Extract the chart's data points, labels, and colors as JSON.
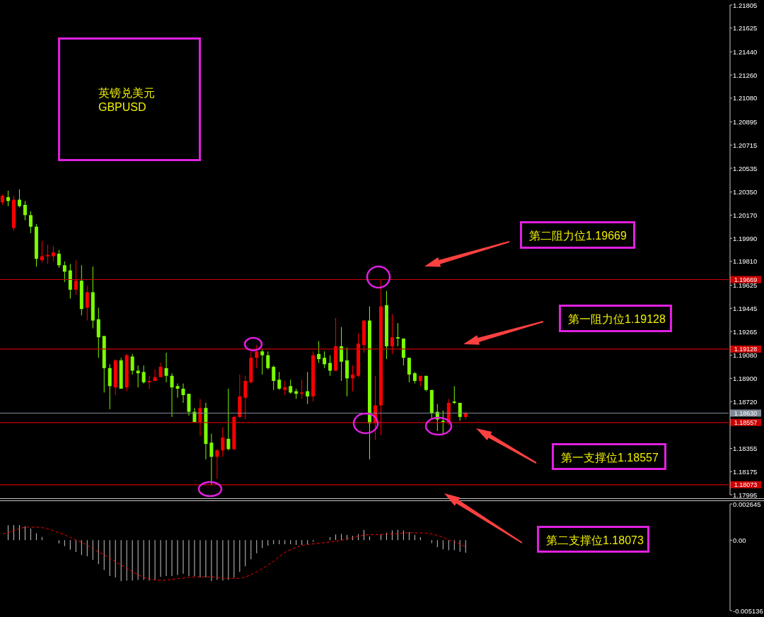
{
  "chart_data": [
    {
      "type": "candlestick",
      "categories": [
        null,
        null,
        null,
        null,
        null,
        null,
        null,
        null,
        null,
        null,
        null,
        null,
        null,
        null,
        null,
        null,
        null,
        null,
        null,
        null,
        null,
        null,
        null,
        null,
        null,
        null,
        null,
        null,
        null,
        null,
        null,
        null,
        null,
        null,
        null,
        null,
        null,
        null,
        null,
        null,
        null,
        null,
        null,
        null,
        null,
        null,
        null,
        null,
        null,
        null,
        null,
        null,
        null,
        null,
        null,
        null,
        null,
        null,
        null,
        null,
        null,
        null,
        null,
        null,
        null,
        null,
        null,
        null,
        null,
        null,
        null,
        null,
        null,
        null,
        null,
        null,
        null,
        null,
        null,
        null,
        null,
        null,
        null,
        null,
        null,
        null,
        null,
        null,
        null,
        null,
        null,
        null,
        null,
        null,
        null,
        null,
        null,
        null,
        null,
        null,
        null,
        null,
        null,
        null,
        null,
        null,
        null,
        null,
        null,
        null,
        null,
        null,
        null,
        null,
        null,
        null,
        null,
        null,
        null,
        null,
        null,
        null,
        null,
        null,
        null,
        null,
        null,
        null,
        null
      ],
      "ohlc": [
        [
          1.2027,
          1.2033,
          1.2025,
          1.2032
        ],
        [
          1.2031,
          1.2036,
          1.2024,
          1.2028
        ],
        [
          1.2007,
          1.2032,
          1.2005,
          1.2029
        ],
        [
          1.2029,
          1.2037,
          1.2023,
          1.2024
        ],
        [
          1.2025,
          1.2028,
          1.2013,
          1.2017
        ],
        [
          1.2017,
          1.202,
          1.2003,
          1.2008
        ],
        [
          1.2008,
          1.201,
          1.1977,
          1.1983
        ],
        [
          1.1982,
          1.1997,
          1.198,
          1.1985
        ],
        [
          1.1985,
          1.1994,
          1.1979,
          1.1986
        ],
        [
          1.1985,
          1.1993,
          1.1981,
          1.1988
        ],
        [
          1.1987,
          1.199,
          1.1976,
          1.1978
        ],
        [
          1.1978,
          1.1981,
          1.1965,
          1.1973
        ],
        [
          1.1974,
          1.1979,
          1.1952,
          1.1959
        ],
        [
          1.1959,
          1.1982,
          1.1955,
          1.1966
        ],
        [
          1.1966,
          1.1978,
          1.1939,
          1.1944
        ],
        [
          1.1945,
          1.1962,
          1.1935,
          1.1957
        ],
        [
          1.1957,
          1.1977,
          1.1929,
          1.1935
        ],
        [
          1.1936,
          1.1945,
          1.1906,
          1.1922
        ],
        [
          1.1923,
          1.1923,
          1.1879,
          1.1898
        ],
        [
          1.1898,
          1.1901,
          1.1866,
          1.1884
        ],
        [
          1.1883,
          1.1905,
          1.1877,
          1.1904
        ],
        [
          1.1904,
          1.1906,
          1.1882,
          1.1882
        ],
        [
          1.1883,
          1.1909,
          1.188,
          1.1908
        ],
        [
          1.1907,
          1.1909,
          1.1893,
          1.1896
        ],
        [
          1.1896,
          1.19,
          1.1883,
          1.1894
        ],
        [
          1.1895,
          1.19,
          1.1886,
          1.1887
        ],
        [
          1.1887,
          1.1892,
          1.1882,
          1.1888
        ],
        [
          1.1888,
          1.1897,
          1.1888,
          1.1891
        ],
        [
          1.1891,
          1.1902,
          1.1891,
          1.1899
        ],
        [
          1.1898,
          1.191,
          1.1887,
          1.1892
        ],
        [
          1.1892,
          1.1894,
          1.186,
          1.1883
        ],
        [
          1.1884,
          1.1886,
          1.1875,
          1.1882
        ],
        [
          1.1882,
          1.1886,
          1.1871,
          1.1877
        ],
        [
          1.1878,
          1.1878,
          1.1861,
          1.1864
        ],
        [
          1.1864,
          1.1867,
          1.1856,
          1.1856
        ],
        [
          1.1856,
          1.1874,
          1.1845,
          1.1867
        ],
        [
          1.1867,
          1.1871,
          1.1827,
          1.1839
        ],
        [
          1.184,
          1.1847,
          1.1807,
          1.1829
        ],
        [
          1.1829,
          1.1835,
          1.1812,
          1.1834
        ],
        [
          1.1834,
          1.1852,
          1.1829,
          1.1844
        ],
        [
          1.1843,
          1.1882,
          1.1834,
          1.1835
        ],
        [
          1.1835,
          1.1861,
          1.1834,
          1.186
        ],
        [
          1.186,
          1.1893,
          1.1859,
          1.1876
        ],
        [
          1.1875,
          1.1892,
          1.1858,
          1.1888
        ],
        [
          1.1887,
          1.1911,
          1.1886,
          1.1906
        ],
        [
          1.1906,
          1.1916,
          1.1898,
          1.1911
        ],
        [
          1.1911,
          1.1913,
          1.1893,
          1.1908
        ],
        [
          1.1908,
          1.1911,
          1.1897,
          1.1898
        ],
        [
          1.1899,
          1.19,
          1.1881,
          1.1888
        ],
        [
          1.1889,
          1.1895,
          1.1881,
          1.1882
        ],
        [
          1.1881,
          1.1888,
          1.1877,
          1.1883
        ],
        [
          1.1884,
          1.1889,
          1.1878,
          1.1879
        ],
        [
          1.188,
          1.1882,
          1.1874,
          1.1878
        ],
        [
          1.1878,
          1.1889,
          1.1874,
          1.1879
        ],
        [
          1.188,
          1.1895,
          1.187,
          1.1876
        ],
        [
          1.1876,
          1.1911,
          1.1872,
          1.1908
        ],
        [
          1.1909,
          1.1919,
          1.1902,
          1.1905
        ],
        [
          1.1906,
          1.1911,
          1.1898,
          1.1901
        ],
        [
          1.1902,
          1.1908,
          1.1892,
          1.1896
        ],
        [
          1.1896,
          1.1937,
          1.1896,
          1.1915
        ],
        [
          1.1915,
          1.193,
          1.1888,
          1.1903
        ],
        [
          1.1904,
          1.1914,
          1.1876,
          1.189
        ],
        [
          1.189,
          1.19,
          1.188,
          1.1893
        ],
        [
          1.1892,
          1.1925,
          1.1891,
          1.1917
        ],
        [
          1.1916,
          1.1935,
          1.191,
          1.1935
        ],
        [
          1.1935,
          1.1946,
          1.1827,
          1.1855
        ],
        [
          1.1855,
          1.1892,
          1.1842,
          1.1869
        ],
        [
          1.1869,
          1.1967,
          1.1846,
          1.1946
        ],
        [
          1.1947,
          1.1958,
          1.1905,
          1.1915
        ],
        [
          1.1915,
          1.194,
          1.1909,
          1.1922
        ],
        [
          1.1922,
          1.1933,
          1.1915,
          1.1921
        ],
        [
          1.1921,
          1.1921,
          1.19,
          1.1906
        ],
        [
          1.1906,
          1.1906,
          1.1887,
          1.1893
        ],
        [
          1.1894,
          1.1895,
          1.1886,
          1.1888
        ],
        [
          1.1888,
          1.1892,
          1.1884,
          1.1892
        ],
        [
          1.1892,
          1.1892,
          1.188,
          1.1881
        ],
        [
          1.1881,
          1.1881,
          1.1858,
          1.1863
        ],
        [
          1.1864,
          1.187,
          1.1849,
          1.1858
        ],
        [
          1.1857,
          1.1865,
          1.1846,
          1.1856
        ],
        [
          1.1856,
          1.1874,
          1.1854,
          1.1871
        ],
        [
          1.1872,
          1.1884,
          1.187,
          1.1871
        ],
        [
          1.1871,
          1.1871,
          1.1857,
          1.186
        ],
        [
          1.186,
          1.1864,
          1.1858,
          1.1863
        ],
        null,
        null,
        null,
        null,
        null,
        null,
        null,
        null,
        null,
        null,
        null,
        null,
        null,
        null,
        null,
        null,
        null,
        null,
        null,
        null,
        null,
        null,
        null,
        null,
        null,
        null,
        null,
        null,
        null,
        null,
        null,
        null,
        null,
        null,
        null,
        null,
        null,
        null,
        null,
        null,
        null,
        null,
        null,
        null,
        null,
        null
      ],
      "colors": [
        "#ff0000",
        "#7cfc00",
        "#ff0000",
        "#7cfc00",
        "#7cfc00",
        "#7cfc00",
        "#7cfc00",
        "#ff0000",
        "#ff0000",
        "#ff0000",
        "#7cfc00",
        "#7cfc00",
        "#7cfc00",
        "#ff0000",
        "#7cfc00",
        "#ff0000",
        "#7cfc00",
        "#7cfc00",
        "#7cfc00",
        "#7cfc00",
        "#ff0000",
        "#7cfc00",
        "#ff0000",
        "#7cfc00",
        "#7cfc00",
        "#7cfc00",
        "#ff0000",
        "#ff0000",
        "#ff0000",
        "#7cfc00",
        "#7cfc00",
        "#7cfc00",
        "#7cfc00",
        "#7cfc00",
        "#7cfc00",
        "#ff0000",
        "#7cfc00",
        "#7cfc00",
        "#ff0000",
        "#ff0000",
        "#7cfc00",
        "#ff0000",
        "#ff0000",
        "#ff0000",
        "#ff0000",
        "#ff0000",
        "#7cfc00",
        "#7cfc00",
        "#7cfc00",
        "#7cfc00",
        "#ff0000",
        "#7cfc00",
        "#7cfc00",
        "#ff0000",
        "#7cfc00",
        "#ff0000",
        "#7cfc00",
        "#7cfc00",
        "#7cfc00",
        "#ff0000",
        "#7cfc00",
        "#7cfc00",
        "#ff0000",
        "#ff0000",
        "#ff0000",
        "#7cfc00",
        "#ff0000",
        "#ff0000",
        "#7cfc00",
        "#ff0000",
        "#7cfc00",
        "#7cfc00",
        "#7cfc00",
        "#7cfc00",
        "#ff0000",
        "#7cfc00",
        "#7cfc00",
        "#7cfc00",
        "#7cfc00",
        "#ff0000",
        "#7cfc00",
        "#7cfc00",
        "#ff0000",
        null,
        null,
        null,
        null,
        null,
        null,
        null,
        null,
        null,
        null,
        null,
        null,
        null,
        null,
        null,
        null,
        null,
        null,
        null,
        null,
        null,
        null,
        null,
        null,
        null,
        null,
        null,
        null,
        null,
        null,
        null,
        null,
        null,
        null,
        null,
        null,
        null,
        null,
        null,
        null,
        null,
        null,
        null,
        null,
        null,
        null
      ],
      "ylim": [
        1.17995,
        1.21805
      ],
      "yticks": [
        1.21805,
        1.21625,
        {
          "value": 1.2144,
          "label": "1.21440"
        },
        {
          "value": 1.2126,
          "label": "1.21260"
        },
        {
          "value": 1.2108,
          "label": "1.21080"
        },
        1.20895,
        1.20715,
        1.20535,
        {
          "value": 1.2035,
          "label": "1.20350"
        },
        {
          "value": 1.2017,
          "label": "1.20170"
        },
        {
          "value": 1.1999,
          "label": "1.19990"
        },
        {
          "value": 1.1981,
          "label": "1.19810"
        },
        1.19625,
        1.19445,
        1.19265,
        {
          "value": 1.1908,
          "label": "1.19080"
        },
        {
          "value": 1.189,
          "label": "1.18900"
        },
        {
          "value": 1.1872,
          "label": "1.18720"
        },
        1.18355,
        1.18175,
        1.17995
      ],
      "ref_lines": [
        {
          "axis": "y",
          "value": 1.19669,
          "label": "1.19669",
          "color": "#cc0000"
        },
        {
          "axis": "y",
          "value": 1.19128,
          "label": "1.19128",
          "color": "#cc0000"
        },
        {
          "axis": "y",
          "value": 1.1863,
          "label": "1.18630",
          "color": "#7f8a96"
        },
        {
          "axis": "y",
          "value": 1.18557,
          "label": "1.18557",
          "color": "#cc0000"
        },
        {
          "axis": "y",
          "value": 1.18073,
          "label": "1.18073",
          "color": "#cc0000"
        }
      ],
      "annotations": [
        "英镑兑美元\nGBPUSD",
        "第二阻力位1.19669",
        "第一阻力位1.19128",
        "第一支撑位1.18557",
        "第二支撑位1.18073"
      ],
      "tick_labels": "y"
    },
    {
      "type": "bar",
      "categories": [
        null,
        null,
        null,
        null,
        null,
        null,
        null,
        null,
        null,
        null,
        null,
        null,
        null,
        null,
        null,
        null,
        null,
        null,
        null,
        null,
        null,
        null,
        null,
        null,
        null,
        null,
        null,
        null,
        null,
        null,
        null,
        null,
        null,
        null,
        null,
        null,
        null,
        null,
        null,
        null,
        null,
        null,
        null,
        null,
        null,
        null,
        null,
        null,
        null,
        null,
        null,
        null,
        null,
        null,
        null,
        null,
        null,
        null,
        null,
        null,
        null,
        null,
        null,
        null,
        null,
        null,
        null,
        null,
        null,
        null,
        null,
        null,
        null,
        null,
        null,
        null,
        null,
        null,
        null,
        null,
        null,
        null,
        null,
        null,
        null,
        null,
        null,
        null,
        null,
        null,
        null,
        null,
        null,
        null,
        null,
        null,
        null,
        null,
        null,
        null,
        null,
        null,
        null,
        null,
        null,
        null,
        null,
        null,
        null,
        null,
        null,
        null,
        null,
        null,
        null,
        null,
        null,
        null,
        null,
        null,
        null,
        null,
        null,
        null,
        null,
        null,
        null,
        null,
        null
      ],
      "series": [
        {
          "type": "bar",
          "color": "#c8c8c8",
          "values": [
            null,
            0.00108,
            0.0011,
            0.0011,
            0.00102,
            0.00086,
            0.00051,
            0.00024,
            null,
            0,
            -0.00024,
            -0.00044,
            -0.00069,
            -0.00086,
            -0.00108,
            -0.00117,
            -0.00144,
            -0.00175,
            -0.00217,
            -0.00261,
            -0.00272,
            -0.00298,
            -0.00294,
            -0.00294,
            -0.0029,
            -0.0029,
            -0.00294,
            -0.0029,
            -0.00267,
            -0.00261,
            -0.00261,
            -0.00254,
            -0.00245,
            -0.00261,
            -0.00263,
            -0.00272,
            -0.00272,
            -0.00298,
            -0.0029,
            -0.00294,
            -0.0029,
            -0.00272,
            -0.00232,
            -0.0019,
            -0.00139,
            -0.00095,
            -0.00057,
            -0.0004,
            -0.00029,
            -0.00029,
            -0.00029,
            -0.00029,
            -0.00035,
            -0.00035,
            -0.00029,
            -0.00011,
            null,
            null,
            0.00022,
            0.00042,
            0.00046,
            0.00038,
            0.00031,
            0.00044,
            0.00075,
            0.00027,
            0,
            0.00044,
            0.00055,
            0.00071,
            0.00075,
            0.00071,
            0.0006,
            0.00038,
            0.00022,
            null,
            -0.00022,
            -0.00051,
            -0.00066,
            -0.00073,
            -0.00073,
            -0.00084,
            -0.00091,
            null,
            null,
            null,
            null,
            null,
            null,
            null,
            null,
            null,
            null,
            null,
            null,
            null,
            null,
            null,
            null,
            null,
            null,
            null,
            null,
            null,
            null,
            null,
            null,
            null,
            null,
            null,
            null,
            null,
            null,
            null,
            null,
            null,
            null,
            null,
            null,
            null,
            null,
            null,
            null,
            null,
            null,
            null,
            null,
            null,
            null
          ]
        },
        {
          "type": "line",
          "color": "#ff0000",
          "line_style": "dashed",
          "values": [
            0.00046,
            0.00055,
            0.00071,
            0.00086,
            0.00095,
            0.00095,
            0.00095,
            0.00091,
            0.00082,
            0.00069,
            0.00053,
            0.00038,
            0.0002,
            0,
            -0.00015,
            -0.00038,
            -0.00064,
            -0.00086,
            -0.00108,
            -0.00133,
            -0.00157,
            -0.00183,
            -0.00205,
            -0.00232,
            -0.00254,
            -0.00272,
            -0.00283,
            -0.0029,
            -0.00292,
            -0.00292,
            -0.00285,
            -0.00281,
            -0.00276,
            -0.0027,
            -0.00267,
            -0.00267,
            -0.00267,
            -0.00267,
            -0.00272,
            -0.00276,
            -0.00278,
            -0.00278,
            -0.00278,
            -0.00267,
            -0.0025,
            -0.0023,
            -0.00205,
            -0.00179,
            -0.00152,
            -0.00117,
            -0.00088,
            -0.00069,
            -0.00051,
            -0.00038,
            -0.00031,
            -0.00027,
            -0.00022,
            -0.00018,
            -0.00013,
            -7e-05,
            0,
            0.00011,
            0.00018,
            0.00029,
            0.00038,
            0.0004,
            0.0004,
            0.00042,
            0.00044,
            0.00046,
            0.00049,
            0.00053,
            0.00055,
            0.00053,
            0.00053,
            0.00051,
            0.00044,
            0.00035,
            0.0002,
            0,
            -0.00011,
            -0.00029,
            -0.00051,
            null,
            null,
            null,
            null,
            null,
            null,
            null,
            null,
            null,
            null,
            null,
            null,
            null,
            null,
            null,
            null,
            null,
            null,
            null,
            null,
            null,
            null,
            null,
            null,
            null,
            null,
            null,
            null,
            null,
            null,
            null,
            null,
            null,
            null,
            null,
            null,
            null,
            null,
            null,
            null,
            null,
            null,
            null,
            null,
            null,
            null
          ]
        }
      ],
      "ylim": [
        -0.005136,
        0.002645
      ],
      "yticks": [
        0.002645,
        {
          "value": 0,
          "label": "0.00"
        },
        -0.005136
      ],
      "tick_labels": "y"
    }
  ]
}
